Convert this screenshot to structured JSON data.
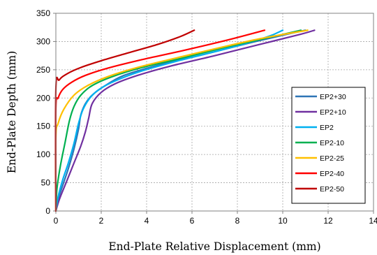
{
  "chart_data": {
    "type": "line",
    "title": "",
    "xlabel": "End-Plate Relative Displacement (mm)",
    "ylabel": "End-Plate Depth (mm)",
    "xlim": [
      0,
      14
    ],
    "ylim": [
      0,
      350
    ],
    "xticks": [
      "0",
      "2",
      "4",
      "6",
      "8",
      "10",
      "12",
      "14"
    ],
    "yticks": [
      "0",
      "50",
      "100",
      "150",
      "200",
      "250",
      "300",
      "350"
    ],
    "grid": true,
    "legend_position": "right",
    "series": [
      {
        "name": "EP2+30",
        "color": "#2e75b6",
        "points": [
          [
            0,
            0
          ],
          [
            0.1,
            20
          ],
          [
            0.3,
            45
          ],
          [
            0.55,
            75
          ],
          [
            0.8,
            110
          ],
          [
            1,
            145
          ],
          [
            1.1,
            170
          ],
          [
            1.3,
            190
          ],
          [
            1.6,
            205
          ],
          [
            2.1,
            220
          ],
          [
            3,
            240
          ],
          [
            4.5,
            258
          ],
          [
            6.5,
            277
          ],
          [
            8.5,
            297
          ],
          [
            10.2,
            313
          ],
          [
            11,
            320
          ]
        ]
      },
      {
        "name": "EP2+10",
        "color": "#7030a0",
        "points": [
          [
            0,
            0
          ],
          [
            0.15,
            20
          ],
          [
            0.45,
            50
          ],
          [
            0.8,
            85
          ],
          [
            1.1,
            115
          ],
          [
            1.3,
            140
          ],
          [
            1.45,
            165
          ],
          [
            1.6,
            190
          ],
          [
            2,
            210
          ],
          [
            2.6,
            225
          ],
          [
            3.6,
            240
          ],
          [
            5,
            256
          ],
          [
            7,
            275
          ],
          [
            9,
            295
          ],
          [
            10.8,
            313
          ],
          [
            11.4,
            320
          ]
        ]
      },
      {
        "name": "EP2",
        "color": "#00b0f0",
        "points": [
          [
            0,
            0
          ],
          [
            0.1,
            25
          ],
          [
            0.3,
            55
          ],
          [
            0.55,
            85
          ],
          [
            0.8,
            120
          ],
          [
            1,
            155
          ],
          [
            1.2,
            180
          ],
          [
            1.5,
            200
          ],
          [
            1.9,
            215
          ],
          [
            2.6,
            230
          ],
          [
            3.8,
            248
          ],
          [
            5.5,
            267
          ],
          [
            7.5,
            287
          ],
          [
            9.3,
            308
          ],
          [
            10,
            320
          ]
        ]
      },
      {
        "name": "EP2-10",
        "color": "#00b050",
        "points": [
          [
            0,
            0
          ],
          [
            0.05,
            40
          ],
          [
            0.2,
            80
          ],
          [
            0.4,
            120
          ],
          [
            0.6,
            160
          ],
          [
            0.8,
            185
          ],
          [
            1.1,
            205
          ],
          [
            1.6,
            222
          ],
          [
            2.5,
            238
          ],
          [
            3.8,
            254
          ],
          [
            5.5,
            270
          ],
          [
            7.5,
            290
          ],
          [
            9.5,
            308
          ],
          [
            10.8,
            320
          ]
        ]
      },
      {
        "name": "EP2-25",
        "color": "#ffc000",
        "points": [
          [
            0,
            0
          ],
          [
            0,
            130
          ],
          [
            0.1,
            155
          ],
          [
            0.35,
            180
          ],
          [
            0.8,
            205
          ],
          [
            1.4,
            222
          ],
          [
            2.3,
            238
          ],
          [
            3.5,
            253
          ],
          [
            5,
            268
          ],
          [
            7,
            287
          ],
          [
            9,
            305
          ],
          [
            11.1,
            320
          ]
        ]
      },
      {
        "name": "EP2-40",
        "color": "#ff0000",
        "points": [
          [
            0,
            0
          ],
          [
            0,
            180
          ],
          [
            0.1,
            200
          ],
          [
            0.3,
            215
          ],
          [
            0.7,
            228
          ],
          [
            1.3,
            240
          ],
          [
            2.3,
            253
          ],
          [
            3.8,
            268
          ],
          [
            5.5,
            283
          ],
          [
            7.5,
            302
          ],
          [
            9.2,
            320
          ]
        ]
      },
      {
        "name": "EP2-50",
        "color": "#c00000",
        "points": [
          [
            0,
            0
          ],
          [
            0,
            215
          ],
          [
            0.15,
            232
          ],
          [
            0.5,
            243
          ],
          [
            1.1,
            254
          ],
          [
            2,
            266
          ],
          [
            3.2,
            280
          ],
          [
            4.5,
            295
          ],
          [
            5.5,
            309
          ],
          [
            6.1,
            320
          ]
        ]
      }
    ]
  }
}
